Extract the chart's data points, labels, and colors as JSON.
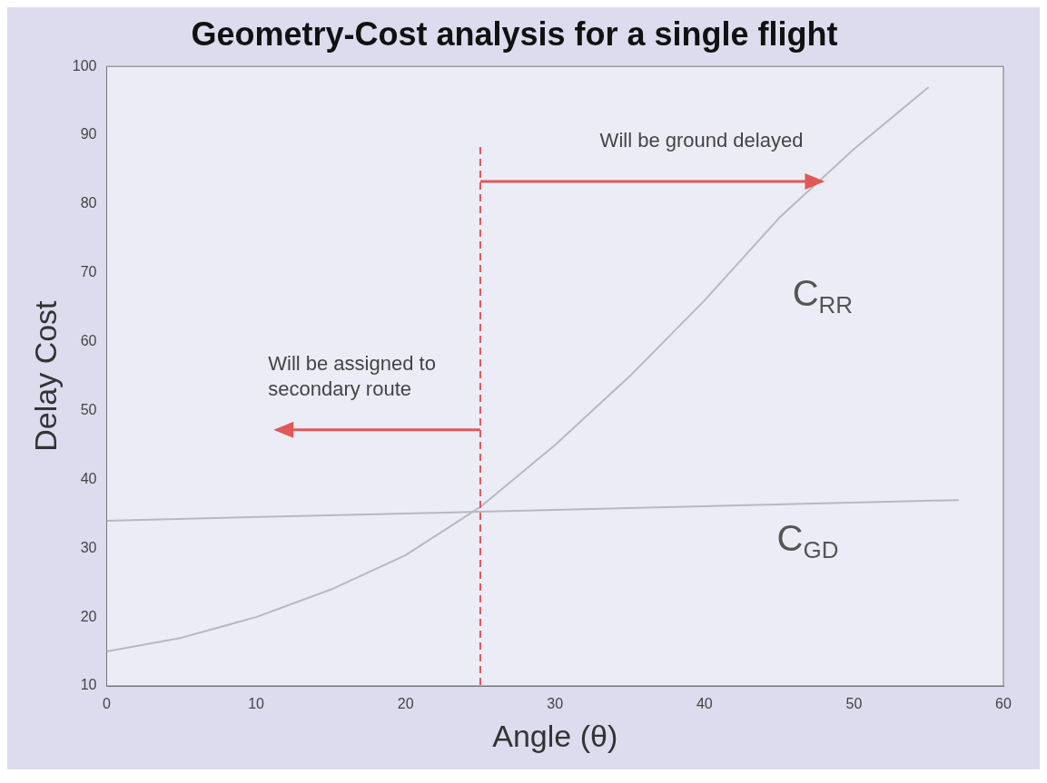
{
  "chart_data": {
    "type": "line",
    "title": "Geometry-Cost analysis for a single flight",
    "xlabel": "Angle (θ)",
    "ylabel": "Delay Cost",
    "xlim": [
      0,
      60
    ],
    "xticks": [
      0,
      10,
      20,
      30,
      40,
      50,
      60
    ],
    "ylim": [
      10,
      100
    ],
    "yticks": [
      10,
      20,
      30,
      40,
      50,
      60,
      70,
      80,
      90,
      100
    ],
    "grid": false,
    "legend": false,
    "marker": "none",
    "line_style": "solid",
    "series": [
      {
        "name": "C$_{RR}$",
        "color": "#b8b8c4",
        "x": [
          0,
          5,
          10,
          15,
          20,
          25,
          30,
          35,
          40,
          45,
          50,
          55
        ],
        "values": [
          15,
          17,
          20,
          24,
          29,
          36,
          45,
          55,
          66,
          78,
          88,
          97
        ]
      },
      {
        "name": "C$_{GD}$",
        "color": "#b8b8c4",
        "x": [
          0,
          57
        ],
        "values": [
          34,
          37
        ]
      }
    ],
    "ref_lines": [
      {
        "axis": "x",
        "value": 25,
        "color": "#e05858",
        "line_style": "dashed"
      }
    ],
    "annotations": [
      "Will be ground delayed",
      "Will be assigned to\nsecondary route"
    ]
  }
}
